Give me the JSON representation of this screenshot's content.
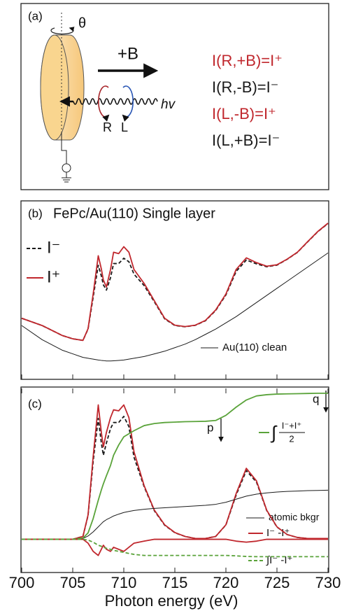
{
  "diagram": {
    "label": "(a)",
    "angle": "θ",
    "field": "+B",
    "photon": "hv",
    "right": "R",
    "left": "L",
    "equations": [
      {
        "text": "I(R,+B)=I⁺",
        "color": "#c0272d"
      },
      {
        "text": "I(R,-B)=I⁻",
        "color": "#1a1a1a"
      },
      {
        "text": "I(L,-B)=I⁺",
        "color": "#c0272d"
      },
      {
        "text": "I(L,+B)=I⁻",
        "color": "#1a1a1a"
      }
    ]
  },
  "chart_data": [
    {
      "type": "line",
      "label": "(b)",
      "title": "FePc/Au(110) Single layer",
      "annotation": "Au(110) clean",
      "xlim": [
        700,
        730
      ],
      "ylim": [
        0,
        100
      ],
      "x": [
        700,
        702,
        704,
        705,
        706,
        706.5,
        707,
        707.5,
        707.8,
        708,
        708.3,
        708.7,
        709,
        709.5,
        710,
        710.5,
        711,
        712,
        713,
        714,
        715,
        716,
        717,
        718,
        719,
        720,
        721,
        722,
        723,
        724,
        725,
        726,
        727,
        728,
        729,
        730
      ],
      "series": [
        {
          "name": "I⁻",
          "color": "#1a1a1a",
          "dash": true,
          "values": [
            34.1,
            30,
            24.3,
            22.5,
            21.6,
            28,
            46,
            64,
            58,
            53,
            50,
            57,
            65,
            65,
            68,
            66,
            59,
            52.5,
            43.3,
            33.8,
            30,
            29.3,
            30.1,
            32.7,
            38.5,
            47.3,
            60.5,
            67,
            64.8,
            63.2,
            64.1,
            67.4,
            71.3,
            77.2,
            83,
            87.6
          ]
        },
        {
          "name": "I⁺",
          "color": "#c0272d",
          "dash": false,
          "values": [
            34.1,
            30,
            24.3,
            22.5,
            21.6,
            28.2,
            47.8,
            69.4,
            62,
            55.7,
            51.8,
            61.6,
            71.4,
            70.6,
            74.5,
            71.4,
            61.6,
            53.7,
            43.9,
            34.1,
            30.2,
            29.4,
            30.2,
            32.9,
            38.8,
            47.8,
            61.6,
            68.2,
            65.5,
            63.5,
            64.3,
            67.5,
            71.4,
            77.3,
            83.1,
            87.8
          ]
        },
        {
          "name": "Au(110) clean",
          "color": "#1a1a1a",
          "dash": false,
          "thin": true,
          "values": [
            30,
            22,
            16,
            14,
            12,
            11.5,
            11,
            10.5,
            10.3,
            10.2,
            10,
            10,
            10.1,
            10.3,
            10.5,
            11,
            11.5,
            12.5,
            14,
            15.5,
            17.5,
            19.5,
            22,
            25,
            28,
            31.5,
            35,
            39,
            43,
            47,
            51,
            55,
            59,
            63,
            67,
            71
          ]
        }
      ]
    },
    {
      "type": "line",
      "label": "(c)",
      "xlabel": "Photon energy (eV)",
      "markers": {
        "p": "p",
        "q": "q"
      },
      "integral_sum": {
        "integral": "∫",
        "numerator": "I⁻+I⁺",
        "denominator": "2"
      },
      "xlim": [
        700,
        730
      ],
      "ylim": [
        7,
        97
      ],
      "xticks": [
        700,
        705,
        710,
        715,
        720,
        725,
        730
      ],
      "x": [
        700,
        702,
        704,
        705,
        706,
        706.5,
        707,
        707.5,
        707.8,
        708,
        708.3,
        708.7,
        709,
        709.5,
        710,
        710.5,
        711,
        712,
        713,
        714,
        715,
        716,
        717,
        718,
        719,
        720,
        721,
        722,
        723,
        724,
        725,
        726,
        727,
        728,
        729,
        730
      ],
      "series": [
        {
          "color": "#1a1a1a",
          "dash": true,
          "values": [
            22.9,
            22.9,
            22.9,
            22.9,
            24.3,
            34.5,
            61,
            82,
            70,
            64,
            70,
            77,
            80,
            80,
            83,
            78,
            63,
            48.5,
            36.8,
            29.8,
            26.1,
            24.3,
            23.3,
            23.3,
            24.3,
            29.9,
            44.5,
            56.5,
            50.8,
            36.9,
            28.9,
            25.2,
            23.8,
            23.3,
            23.3,
            23.3
          ]
        },
        {
          "color": "#c0272d",
          "dash": false,
          "values": [
            22.9,
            22.9,
            22.9,
            22.9,
            24.3,
            34.8,
            63.3,
            88.6,
            75.2,
            68.1,
            75.2,
            82.4,
            86.2,
            85.7,
            88.6,
            82.4,
            65.7,
            49,
            37.1,
            30,
            26.2,
            24.3,
            23.3,
            23.3,
            24.3,
            30,
            45.2,
            57.6,
            51.4,
            37.1,
            29,
            25.2,
            23.8,
            23.3,
            23.3,
            23.3
          ]
        },
        {
          "name": "atomic bkgr",
          "color": "#1a1a1a",
          "dash": false,
          "thin": true,
          "values": [
            22.9,
            22.9,
            22.9,
            22.9,
            23.3,
            24.5,
            26.5,
            29,
            30.5,
            31.5,
            32.5,
            33.5,
            34.3,
            35.2,
            36,
            36.5,
            37,
            37.6,
            38,
            38.3,
            38.6,
            38.9,
            39.2,
            39.5,
            40,
            41,
            42.5,
            44,
            45,
            45.6,
            46,
            46.3,
            46.5,
            46.7,
            46.8,
            46.9
          ]
        },
        {
          "color": "#5aa33a",
          "dash": false,
          "values": [
            22.9,
            22.9,
            22.9,
            22.9,
            23.5,
            26,
            33,
            42,
            47,
            50,
            54,
            59,
            64,
            69,
            73,
            74.5,
            76,
            78.5,
            79.5,
            80,
            80.2,
            80.4,
            80.5,
            80.6,
            81,
            83.5,
            87.5,
            91,
            93,
            93.6,
            93.9,
            94,
            94.1,
            94.2,
            94.3,
            94.3
          ]
        },
        {
          "name": "I⁻ -I⁺",
          "color": "#c0272d",
          "dash": false,
          "values": [
            22.9,
            22.9,
            22.9,
            22.9,
            22.9,
            21,
            17,
            15,
            18,
            20,
            18,
            17,
            19,
            18,
            17,
            19,
            21,
            22,
            22.9,
            22.9,
            22.9,
            22.9,
            22.9,
            22.9,
            22.9,
            22.9,
            22,
            21.5,
            22,
            22.9,
            22.9,
            22.9,
            22.9,
            22.9,
            22.9,
            22.9
          ]
        },
        {
          "name": "∫I⁻ -I⁺",
          "color": "#5aa33a",
          "dash": true,
          "values": [
            22.9,
            22.9,
            22.9,
            22.9,
            22.9,
            22.5,
            21.5,
            20,
            19.5,
            19,
            18.5,
            18,
            17.5,
            17,
            16.5,
            16,
            15.5,
            15,
            15,
            15,
            15,
            15,
            15,
            15,
            15,
            15,
            14.8,
            14.5,
            14.4,
            14.4,
            14.4,
            14.4,
            14.4,
            14.4,
            14.4,
            14.4
          ]
        }
      ]
    }
  ]
}
